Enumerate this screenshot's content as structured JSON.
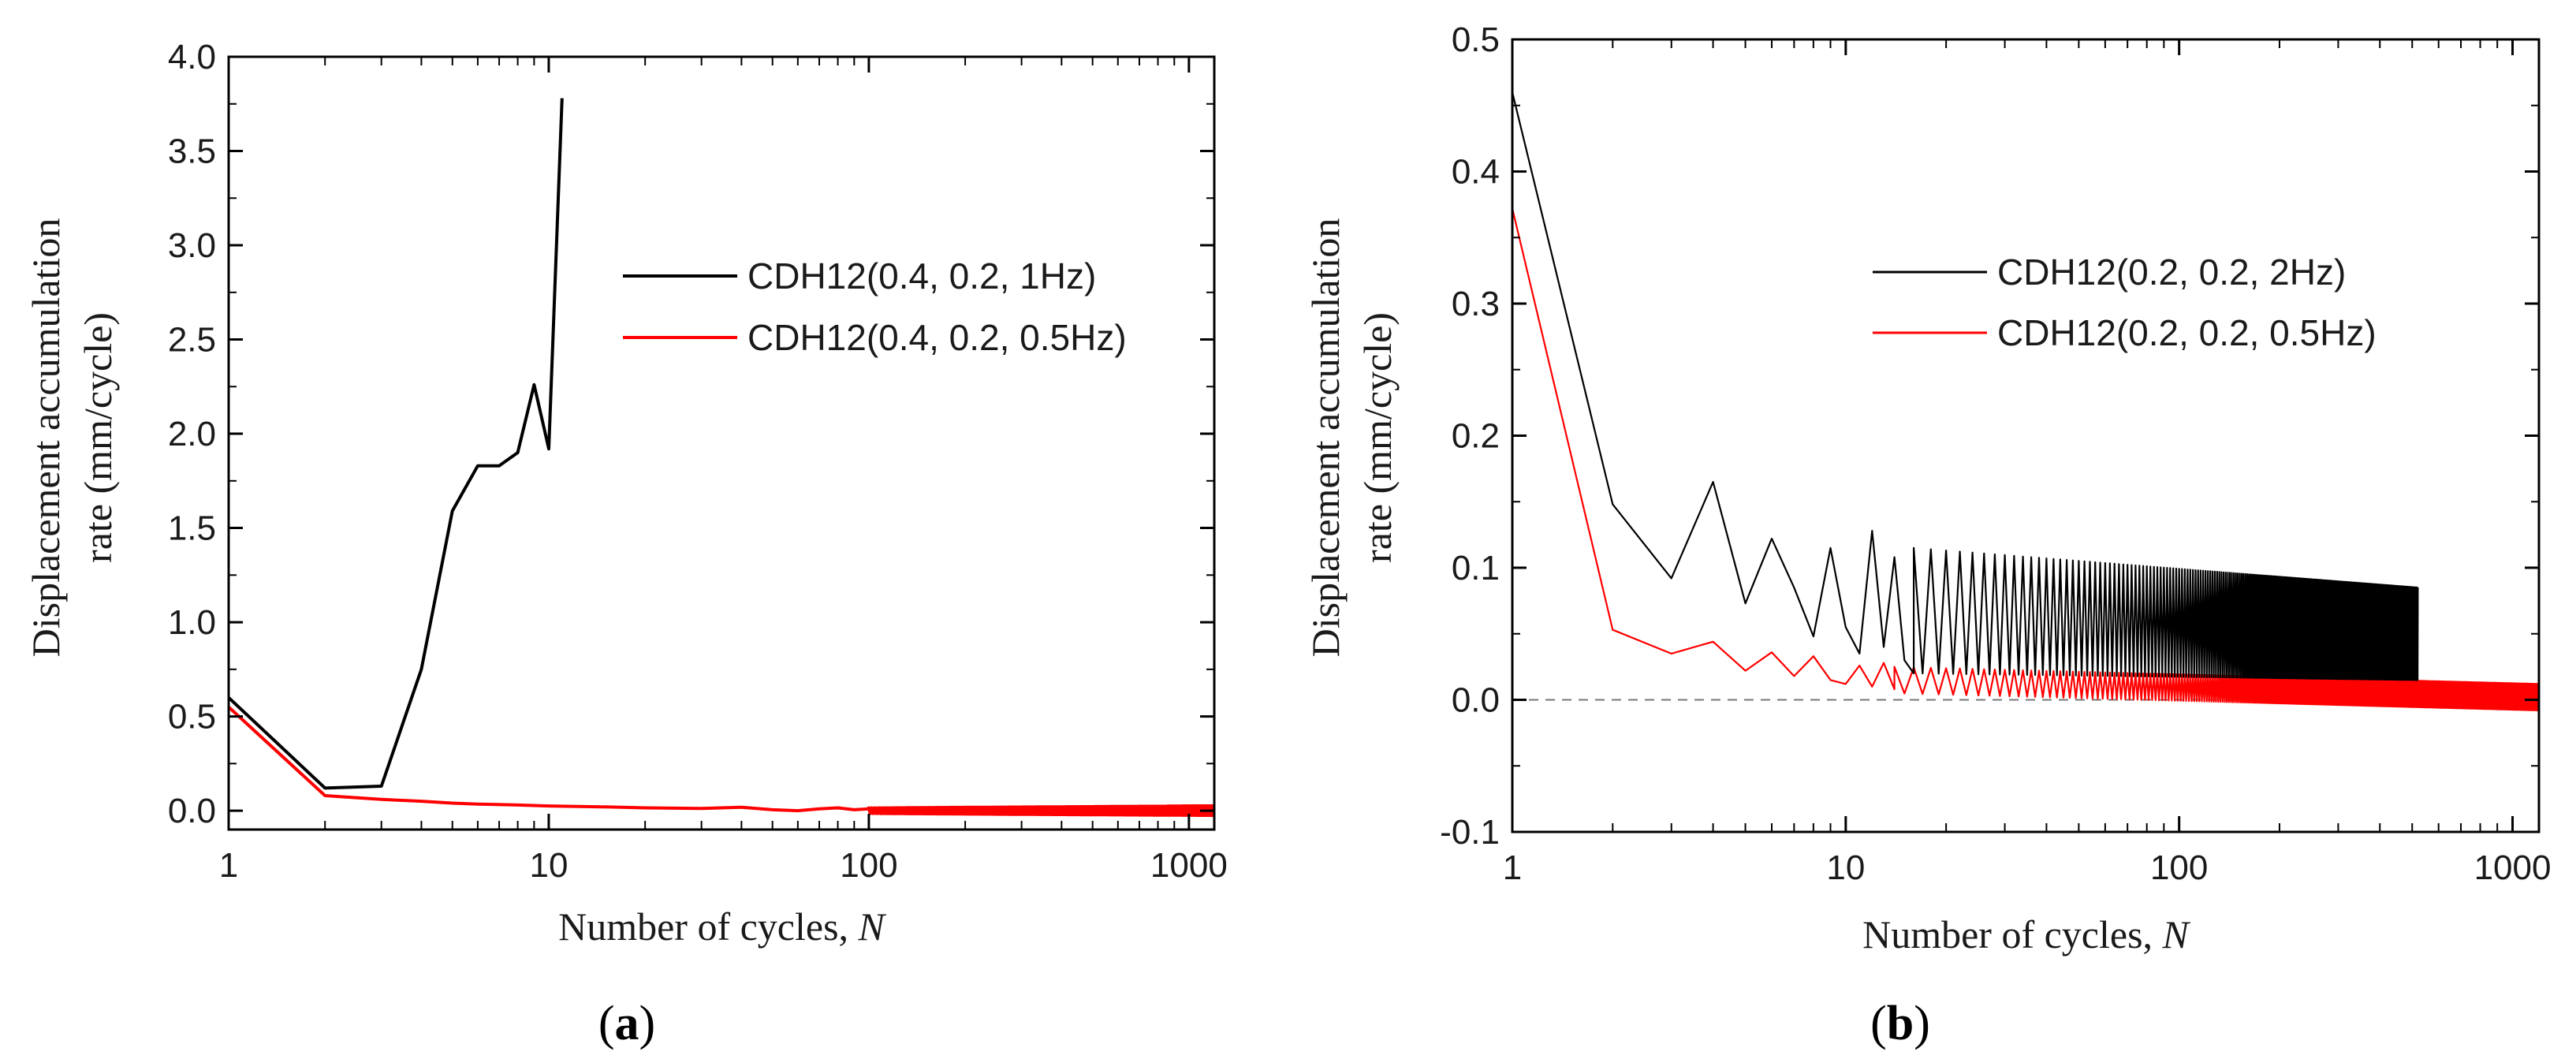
{
  "colors": {
    "black": "#000000",
    "red": "#ff0000",
    "zero_line": "#777777"
  },
  "chart_data": [
    {
      "panel": "(a)",
      "panel_letter": "a",
      "type": "line",
      "xscale": "log",
      "xlim": [
        1,
        1200
      ],
      "ylim": [
        -0.1,
        4.0
      ],
      "yticks": [
        "0.0",
        "0.5",
        "1.0",
        "1.5",
        "2.0",
        "2.5",
        "3.0",
        "3.5",
        "4.0"
      ],
      "xticks": [
        "1",
        "10",
        "100",
        "1000"
      ],
      "xlabel": "Number of cycles,",
      "xlabel_var": "N",
      "ylabel_line1": "Displacement accumulation",
      "ylabel_line2": "rate (mm/cycle)",
      "legend_position": "center-right",
      "series": [
        {
          "name": "CDH12(0.4, 0.2, 1Hz)",
          "color": "#000000",
          "x": [
            1,
            2,
            3,
            4,
            5,
            6,
            7,
            8,
            9,
            10,
            11
          ],
          "y": [
            0.6,
            0.12,
            0.13,
            0.75,
            1.59,
            1.83,
            1.83,
            1.9,
            2.26,
            1.92,
            3.78
          ]
        },
        {
          "name": "CDH12(0.4, 0.2, 0.5Hz)",
          "color": "#ff0000",
          "oscillation": {
            "start": 100,
            "end": 1200,
            "mid": 0.0,
            "amp_start": 0.015,
            "amp_end": 0.025
          },
          "x": [
            1,
            2,
            3,
            4,
            5,
            6,
            8,
            10,
            15,
            20,
            30,
            40,
            50,
            60,
            70,
            80,
            90,
            100
          ],
          "y": [
            0.55,
            0.08,
            0.06,
            0.05,
            0.04,
            0.035,
            0.03,
            0.025,
            0.02,
            0.015,
            0.012,
            0.018,
            0.005,
            0.0,
            0.01,
            0.015,
            0.005,
            0.01
          ]
        }
      ]
    },
    {
      "panel": "(b)",
      "panel_letter": "b",
      "type": "line",
      "xscale": "log",
      "xlim": [
        1,
        1200
      ],
      "ylim": [
        -0.1,
        0.5
      ],
      "yticks": [
        "-0.1",
        "0.0",
        "0.1",
        "0.2",
        "0.3",
        "0.4",
        "0.5"
      ],
      "xticks": [
        "1",
        "10",
        "100",
        "1000"
      ],
      "xlabel": "Number of cycles,",
      "xlabel_var": "N",
      "ylabel_line1": "Displacement accumulation",
      "ylabel_line2": "rate (mm/cycle)",
      "reference_line_y": 0.0,
      "legend_position": "center-right",
      "series": [
        {
          "name": "CDH12(0.2, 0.2, 2Hz)",
          "color": "#000000",
          "oscillation": {
            "start": 16,
            "end": 520,
            "high_start": 0.115,
            "high_end": 0.085,
            "low_start": 0.02,
            "low_end": 0.015
          },
          "x": [
            1,
            2,
            3,
            4,
            5,
            6,
            7,
            8,
            9,
            10,
            11,
            12,
            13,
            14,
            15,
            16
          ],
          "y": [
            0.46,
            0.148,
            0.092,
            0.165,
            0.073,
            0.122,
            0.085,
            0.048,
            0.115,
            0.055,
            0.035,
            0.128,
            0.04,
            0.108,
            0.03,
            0.02
          ]
        },
        {
          "name": "CDH12(0.2, 0.2, 0.5Hz)",
          "color": "#ff0000",
          "oscillation": {
            "start": 14,
            "end": 1200,
            "high_start": 0.025,
            "high_end": 0.012,
            "low_start": 0.005,
            "low_end": -0.008
          },
          "x": [
            1,
            2,
            3,
            4,
            5,
            6,
            7,
            8,
            9,
            10,
            11,
            12,
            13,
            14
          ],
          "y": [
            0.372,
            0.053,
            0.035,
            0.044,
            0.022,
            0.036,
            0.018,
            0.033,
            0.015,
            0.012,
            0.026,
            0.01,
            0.028,
            0.008
          ]
        }
      ]
    }
  ]
}
